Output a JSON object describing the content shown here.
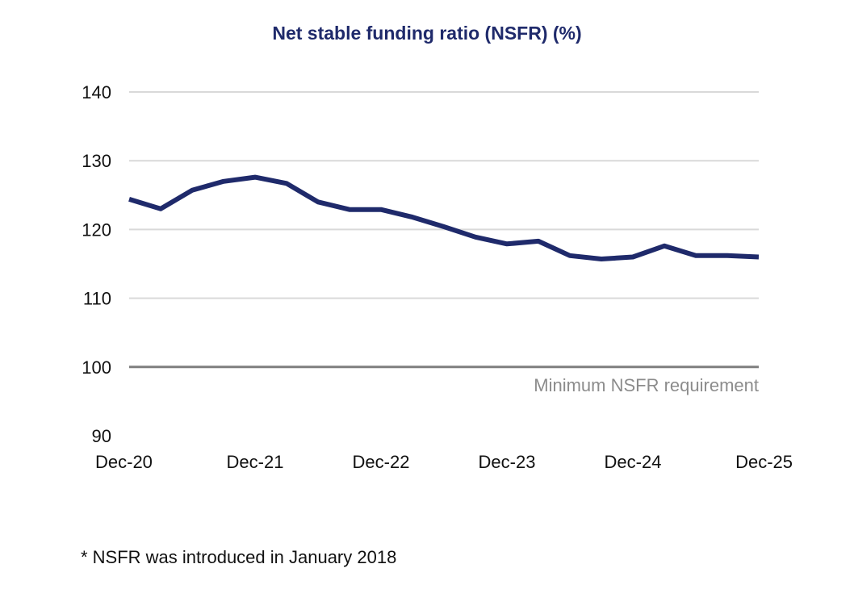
{
  "chart_data": {
    "type": "line",
    "title": "Net stable funding ratio (NSFR) (%)",
    "xlabel": "",
    "ylabel": "",
    "ylim": [
      90,
      140
    ],
    "yticks": [
      90,
      100,
      110,
      120,
      130,
      140
    ],
    "xticks": [
      "Dec-20",
      "Dec-21",
      "Dec-22",
      "Dec-23",
      "Dec-24",
      "Dec-25"
    ],
    "grid": true,
    "series": [
      {
        "color": "#1f2a6b",
        "x": [
          "Dec-20",
          "Mar-21",
          "Jun-21",
          "Sep-21",
          "Dec-21",
          "Mar-22",
          "Jun-22",
          "Sep-22",
          "Dec-22",
          "Mar-23",
          "Jun-23",
          "Sep-23",
          "Dec-23",
          "Mar-24",
          "Jun-24",
          "Sep-24",
          "Dec-24",
          "Mar-25",
          "Jun-25",
          "Sep-25",
          "Dec-25"
        ],
        "values": [
          124.4,
          123.0,
          125.7,
          127.0,
          127.6,
          126.7,
          124.0,
          122.9,
          122.9,
          121.8,
          120.4,
          118.9,
          117.9,
          118.3,
          116.2,
          115.7,
          116.0,
          117.6,
          116.2,
          116.2,
          116.0
        ]
      }
    ],
    "reference_line": {
      "value": 100,
      "label": "Minimum NSFR requirement",
      "color": "#7f7f7f"
    },
    "footnote": "* NSFR was introduced in January 2018"
  }
}
